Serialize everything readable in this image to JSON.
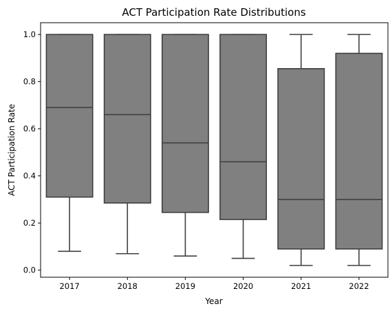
{
  "chart_data": {
    "type": "box",
    "title": "ACT Participation Rate Distributions",
    "xlabel": "Year",
    "ylabel": "ACT Participation Rate",
    "ylim": [
      -0.03,
      1.05
    ],
    "yticks": [
      0.0,
      0.2,
      0.4,
      0.6,
      0.8,
      1.0
    ],
    "ytick_labels": [
      "0.0",
      "0.2",
      "0.4",
      "0.6",
      "0.8",
      "1.0"
    ],
    "grid": false,
    "colors": {
      "box_fill": "#808080",
      "box_line": "#3f3f3f"
    },
    "categories": [
      "2017",
      "2018",
      "2019",
      "2020",
      "2021",
      "2022"
    ],
    "boxes": [
      {
        "category": "2017",
        "whisker_low": 0.08,
        "q1": 0.31,
        "median": 0.69,
        "q3": 1.0,
        "whisker_high": 1.0
      },
      {
        "category": "2018",
        "whisker_low": 0.07,
        "q1": 0.285,
        "median": 0.66,
        "q3": 1.0,
        "whisker_high": 1.0
      },
      {
        "category": "2019",
        "whisker_low": 0.06,
        "q1": 0.245,
        "median": 0.54,
        "q3": 1.0,
        "whisker_high": 1.0
      },
      {
        "category": "2020",
        "whisker_low": 0.05,
        "q1": 0.215,
        "median": 0.46,
        "q3": 1.0,
        "whisker_high": 1.0
      },
      {
        "category": "2021",
        "whisker_low": 0.02,
        "q1": 0.09,
        "median": 0.3,
        "q3": 0.855,
        "whisker_high": 1.0
      },
      {
        "category": "2022",
        "whisker_low": 0.02,
        "q1": 0.09,
        "median": 0.3,
        "q3": 0.92,
        "whisker_high": 1.0
      }
    ]
  }
}
